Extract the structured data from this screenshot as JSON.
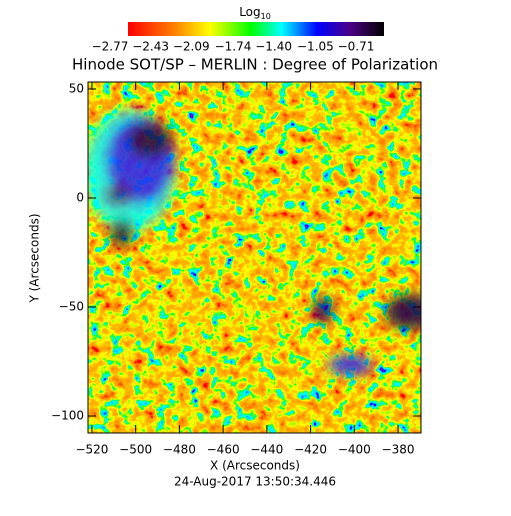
{
  "chart_data": {
    "type": "image",
    "title": "Hinode SOT/SP – MERLIN : Degree of Polarization",
    "colorbar_title": "Log",
    "colorbar_title_sub": "10",
    "colorbar_lim": [
      -2.77,
      -0.71
    ],
    "colorbar_ticks": [
      {
        "value": -2.77,
        "label": "−2.77"
      },
      {
        "value": -2.43,
        "label": "−2.43"
      },
      {
        "value": -2.09,
        "label": "−2.09"
      },
      {
        "value": -1.74,
        "label": "−1.74"
      },
      {
        "value": -1.4,
        "label": "−1.40"
      },
      {
        "value": -1.05,
        "label": "−1.05"
      },
      {
        "value": -0.71,
        "label": "−0.71"
      }
    ],
    "xlabel": "X (Arcseconds)",
    "ylabel": "Y (Arcseconds)",
    "xlim": [
      -521.8,
      -369.5
    ],
    "ylim": [
      -107.8,
      53.2
    ],
    "xticks": [
      {
        "value": -520,
        "label": "−520"
      },
      {
        "value": -500,
        "label": "−500"
      },
      {
        "value": -480,
        "label": "−480"
      },
      {
        "value": -460,
        "label": "−460"
      },
      {
        "value": -440,
        "label": "−440"
      },
      {
        "value": -420,
        "label": "−420"
      },
      {
        "value": -400,
        "label": "−400"
      },
      {
        "value": -380,
        "label": "−380"
      }
    ],
    "yticks": [
      {
        "value": -100,
        "label": "−100"
      },
      {
        "value": -50,
        "label": "−50"
      },
      0,
      50
    ],
    "footer": "24-Aug-2017 13:50:34.446"
  }
}
